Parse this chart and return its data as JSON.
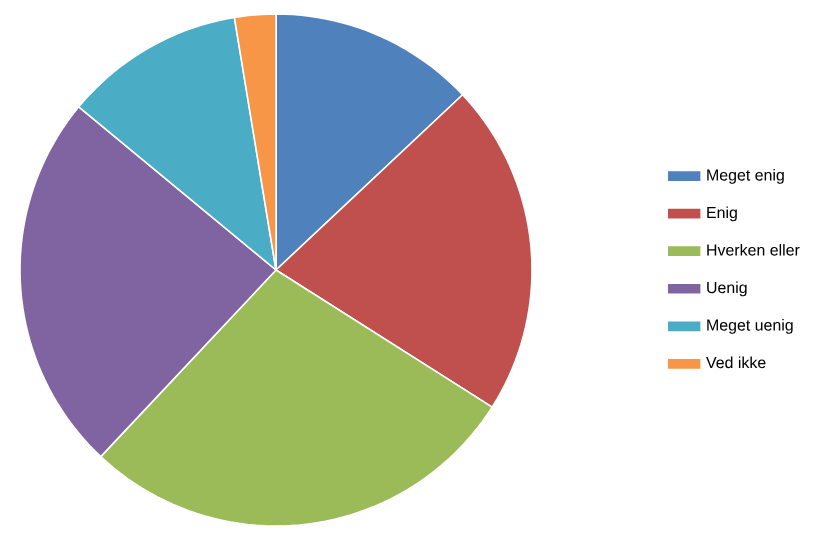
{
  "chart_data": {
    "type": "pie",
    "categories": [
      "Meget enig",
      "Enig",
      "Hverken eller",
      "Uenig",
      "Meget uenig",
      "Ved ikke"
    ],
    "values": [
      13,
      21,
      28,
      24,
      11.4,
      2.6
    ],
    "colors": [
      "#4f81bd",
      "#c0504d",
      "#9bbb59",
      "#8064a2",
      "#4bacc6",
      "#f79646"
    ],
    "legend": "right"
  }
}
